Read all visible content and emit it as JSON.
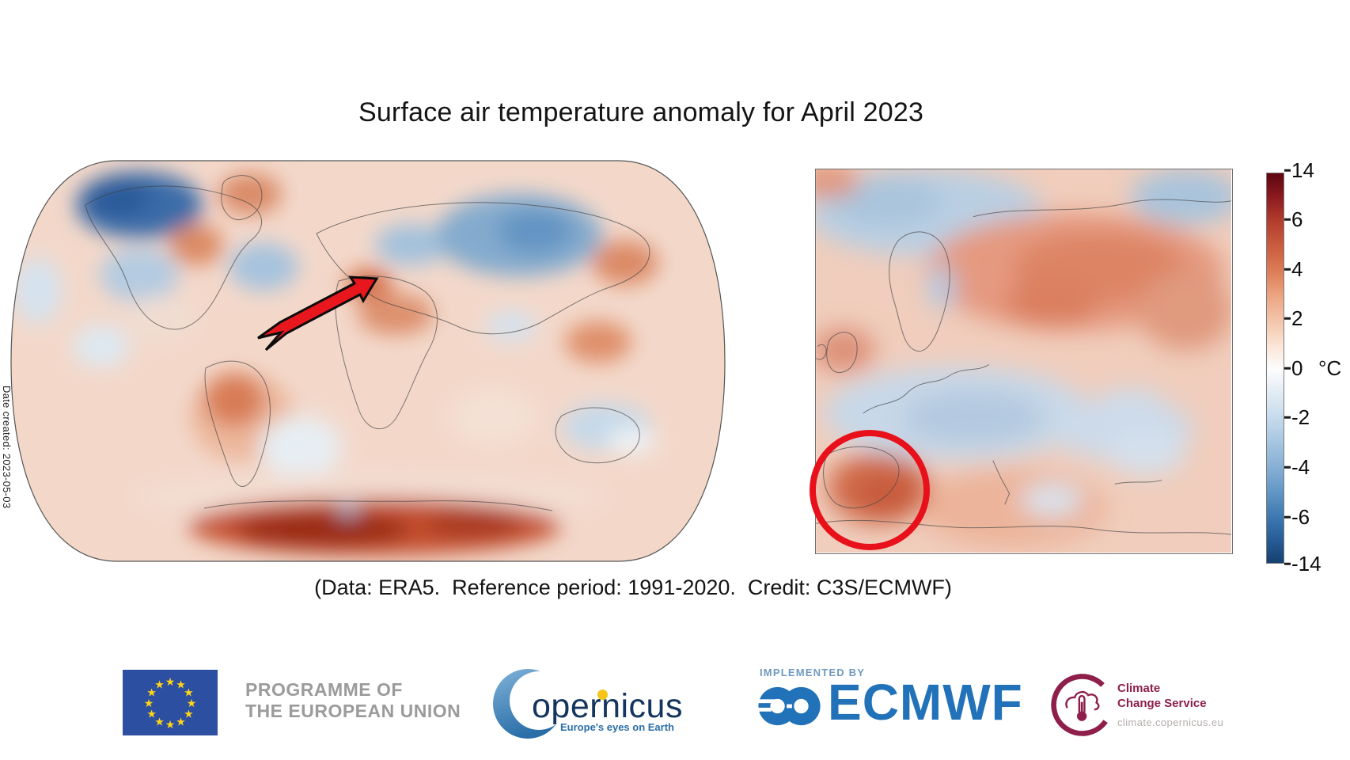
{
  "title": "Surface air temperature anomaly for April 2023",
  "caption": "(Data: ERA5.  Reference period: 1991-2020.  Credit: C3S/ECMWF)",
  "date_created": "Date created: 2023-05-03",
  "colorbar": {
    "unit": "°C",
    "ticks": [
      "14",
      "6",
      "4",
      "2",
      "0",
      "-2",
      "-4",
      "-6",
      "-14"
    ],
    "colors": {
      "max": "#5d050e",
      "mid": "#fdfdfd",
      "min": "#16406f"
    }
  },
  "maps": {
    "world": {
      "name": "Global surface air temperature anomaly map",
      "annotation": "red arrow pointing at the Iberian Peninsula"
    },
    "europe": {
      "name": "European surface air temperature anomaly map",
      "annotation": "red circle around Spain"
    }
  },
  "annotation_color": "#e8161d",
  "footer": {
    "eu": {
      "line1": "PROGRAMME OF",
      "line2": "THE EUROPEAN UNION",
      "star": "★",
      "star_count": 12,
      "flag_color": "#2d4fa1",
      "star_color": "#ffd617"
    },
    "copernicus": {
      "wordmark": "opernicus",
      "tagline": "Europe's eyes on Earth"
    },
    "ecmwf": {
      "implemented_by": "IMPLEMENTED BY",
      "wordmark": "ECMWF",
      "brand_color": "#2172b8"
    },
    "c3s": {
      "line1": "Climate",
      "line2": "Change Service",
      "url": "climate.copernicus.eu",
      "brand_color": "#8e1f4b"
    }
  }
}
